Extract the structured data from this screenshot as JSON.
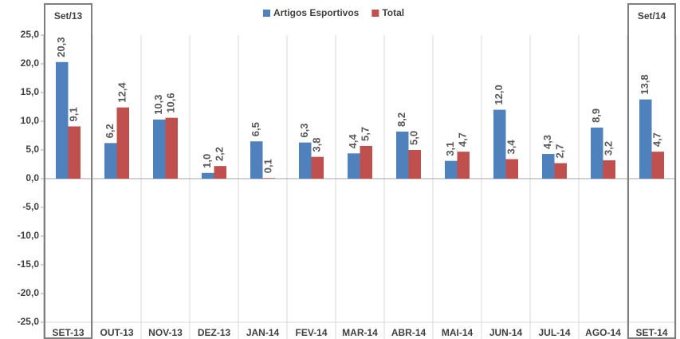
{
  "chart_data": {
    "type": "bar",
    "annotations": [
      "Set/13",
      "Set/14"
    ],
    "categories": [
      "SET-13",
      "OUT-13",
      "NOV-13",
      "DEZ-13",
      "JAN-14",
      "FEV-14",
      "MAR-14",
      "ABR-14",
      "MAI-14",
      "JUN-14",
      "JUL-14",
      "AGO-14",
      "SET-14"
    ],
    "series": [
      {
        "name": "Artigos Esportivos",
        "color": "#4f81bd",
        "values": [
          20.3,
          6.2,
          10.3,
          1.0,
          6.5,
          6.3,
          4.4,
          8.2,
          3.1,
          12.0,
          4.3,
          8.9,
          13.8
        ],
        "value_labels": [
          "20,3",
          "6,2",
          "10,3",
          "1,0",
          "6,5",
          "6,3",
          "4,4",
          "8,2",
          "3,1",
          "12,0",
          "4,3",
          "8,9",
          "13,8"
        ]
      },
      {
        "name": "Total",
        "color": "#c0504d",
        "values": [
          9.1,
          12.4,
          10.6,
          2.2,
          0.1,
          3.8,
          5.7,
          5.0,
          4.7,
          3.4,
          2.7,
          3.2,
          4.7
        ],
        "value_labels": [
          "9,1",
          "12,4",
          "10,6",
          "2,2",
          "0,1",
          "3,8",
          "5,7",
          "5,0",
          "4,7",
          "3,4",
          "2,7",
          "3,2",
          "4,7"
        ]
      }
    ],
    "ylim": [
      -25,
      25
    ],
    "yticks": [
      {
        "value": -25,
        "label": "-25,0"
      },
      {
        "value": -20,
        "label": "-20,0"
      },
      {
        "value": -15,
        "label": "-15,0"
      },
      {
        "value": -10,
        "label": "-10,0"
      },
      {
        "value": -5,
        "label": "-5,0"
      },
      {
        "value": 0,
        "label": "0,0"
      },
      {
        "value": 5,
        "label": "5,0"
      },
      {
        "value": 10,
        "label": "10,0"
      },
      {
        "value": 15,
        "label": "15,0"
      },
      {
        "value": 20,
        "label": "20,0"
      },
      {
        "value": 25,
        "label": "25,0"
      }
    ],
    "legend": "top"
  }
}
